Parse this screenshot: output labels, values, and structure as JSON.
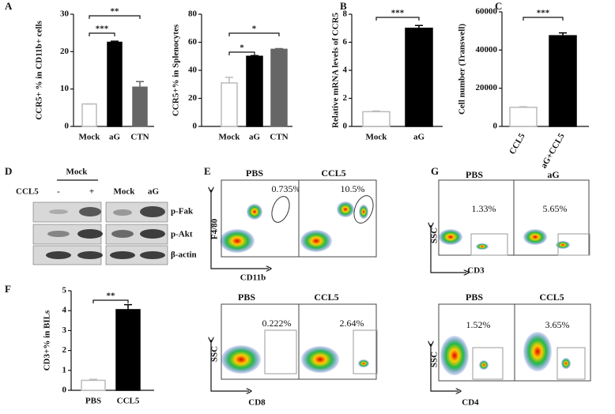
{
  "chart_data": [
    {
      "type": "bar",
      "y_label": "CCR5+ % in CD11b+ cells",
      "categories": [
        "Mock",
        "aG",
        "CTN"
      ],
      "values": [
        6,
        22.5,
        10.5
      ],
      "errors": [
        0,
        0.3,
        1.5
      ],
      "colors": [
        "#ffffff",
        "#000000",
        "#666666"
      ],
      "ylim": [
        0,
        30
      ],
      "yticks": [
        0,
        10,
        20,
        30
      ],
      "grid": false,
      "brackets": [
        {
          "label": "***",
          "between": [
            "Mock",
            "aG"
          ]
        },
        {
          "label": "**",
          "between": [
            "Mock",
            "CTN"
          ]
        }
      ]
    },
    {
      "type": "bar",
      "y_label": "CCR5+% in Splenocytes",
      "categories": [
        "Mock",
        "aG",
        "CTN"
      ],
      "values": [
        31,
        50,
        55
      ],
      "errors": [
        4,
        0.5,
        0.5
      ],
      "colors": [
        "#ffffff",
        "#000000",
        "#666666"
      ],
      "ylim": [
        0,
        80
      ],
      "yticks": [
        0,
        20,
        40,
        60,
        80
      ],
      "grid": false,
      "brackets": [
        {
          "label": "*",
          "between": [
            "Mock",
            "aG"
          ]
        },
        {
          "label": "*",
          "between": [
            "Mock",
            "CTN"
          ]
        }
      ]
    },
    {
      "type": "bar",
      "y_label": "Relative mRNA levels of CCR5",
      "categories": [
        "Mock",
        "aG"
      ],
      "values": [
        1.05,
        7.0
      ],
      "errors": [
        0.05,
        0.2
      ],
      "colors": [
        "#ffffff",
        "#000000"
      ],
      "ylim": [
        0,
        8
      ],
      "yticks": [
        0,
        2,
        4,
        6,
        8
      ],
      "grid": false,
      "brackets": [
        {
          "label": "***",
          "between": [
            "Mock",
            "aG"
          ]
        }
      ]
    },
    {
      "type": "bar",
      "y_label": "Cell number (Transwell)",
      "categories": [
        "CCL5",
        "aG+CCL5"
      ],
      "values": [
        10000,
        47500
      ],
      "errors": [
        300,
        1500
      ],
      "colors": [
        "#ffffff",
        "#000000"
      ],
      "ylim": [
        0,
        60000
      ],
      "yticks": [
        0,
        20000,
        40000,
        60000
      ],
      "grid": false,
      "brackets": [
        {
          "label": "***",
          "between": [
            "CCL5",
            "aG+CCL5"
          ]
        }
      ]
    },
    {
      "type": "bar",
      "y_label": "CD3+% in BILs",
      "categories": [
        "PBS",
        "CCL5"
      ],
      "values": [
        0.5,
        4.05
      ],
      "errors": [
        0.05,
        0.25
      ],
      "colors": [
        "#ffffff",
        "#000000"
      ],
      "ylim": [
        0,
        5
      ],
      "yticks": [
        0,
        1,
        2,
        3,
        4,
        5
      ],
      "grid": false,
      "brackets": [
        {
          "label": "**",
          "between": [
            "PBS",
            "CCL5"
          ]
        }
      ]
    }
  ],
  "panel_labels": [
    "A",
    "B",
    "C",
    "D",
    "E",
    "F",
    "G"
  ],
  "blot": {
    "group": "Mock",
    "treatment": "CCL5",
    "lanes": [
      "-",
      "+",
      "Mock",
      "aG"
    ],
    "rows": [
      "p-Fak",
      "p-Akt",
      "β-actin"
    ]
  },
  "flow": [
    {
      "titles": [
        "PBS",
        "CCL5"
      ],
      "percents": [
        "0.735%",
        "10.5%"
      ],
      "y_axis": "F4/80",
      "x_axis": "CD11b"
    },
    {
      "titles": [
        "PBS",
        "CCL5"
      ],
      "percents": [
        "0.222%",
        "2.64%"
      ],
      "y_axis": "SSC",
      "x_axis": "CD8"
    },
    {
      "titles": [
        "PBS",
        "aG"
      ],
      "percents": [
        "1.33%",
        "5.65%"
      ],
      "y_axis": "SSC",
      "x_axis": "CD3"
    },
    {
      "titles": [
        "PBS",
        "CCL5"
      ],
      "percents": [
        "1.52%",
        "3.65%"
      ],
      "y_axis": "SSC",
      "x_axis": "CD4"
    }
  ]
}
